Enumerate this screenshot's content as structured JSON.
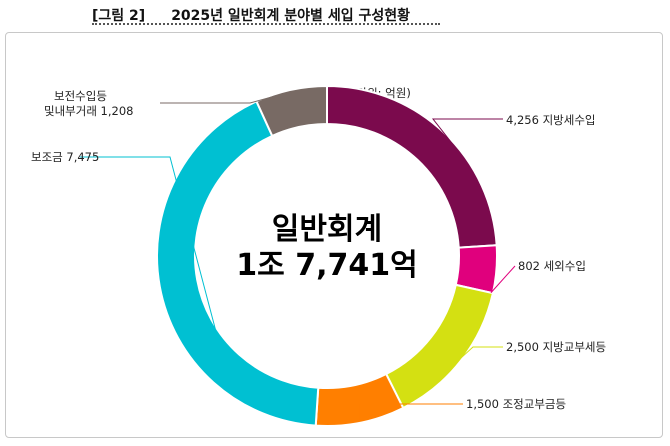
{
  "figure": {
    "label": "[그림 2]",
    "title": "2025년 일반회계 분야별 세입 구성현황"
  },
  "unit": "(단위: 억원)",
  "center": {
    "line1": "일반회계",
    "line2": "1조 7,741억"
  },
  "chart_data": {
    "type": "pie",
    "variant": "donut",
    "title": "2025년 일반회계 분야별 세입 구성현황",
    "unit": "억원",
    "total": 17741,
    "slices": [
      {
        "name": "지방세수입",
        "value": 4256,
        "value_label": "4,256",
        "color": "#7b0a4d"
      },
      {
        "name": "세외수입",
        "value": 802,
        "value_label": "802",
        "color": "#e0007d"
      },
      {
        "name": "지방교부세등",
        "value": 2500,
        "value_label": "2,500",
        "color": "#d4e012"
      },
      {
        "name": "조정교부금등",
        "value": 1500,
        "value_label": "1,500",
        "color": "#ff7f00"
      },
      {
        "name": "보조금",
        "value": 7475,
        "value_label": "7,475",
        "color": "#00c0d2"
      },
      {
        "name": "보전수입등 및내부거래",
        "value": 1208,
        "value_label": "1,208",
        "color": "#786a64"
      }
    ],
    "labels": [
      {
        "text": "4,256 지방세수입"
      },
      {
        "text": "802 세외수입"
      },
      {
        "text": "2,500 지방교부세등"
      },
      {
        "text": "1,500 조정교부금등"
      },
      {
        "text": "보조금 7,475"
      },
      {
        "line1": "보전수입등",
        "line2": "및내부거래 1,208"
      }
    ]
  }
}
